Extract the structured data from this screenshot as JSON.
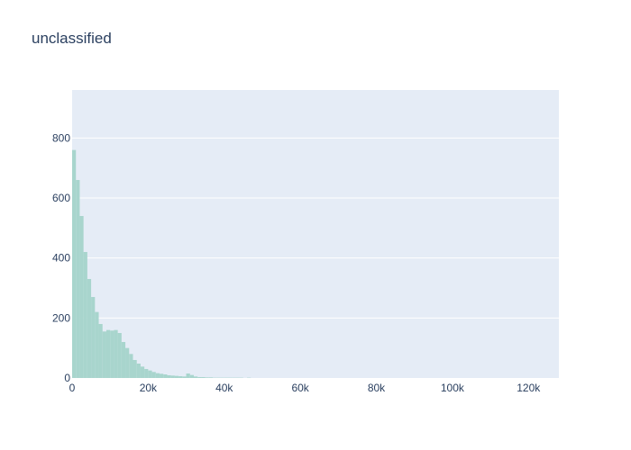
{
  "chart_data": {
    "type": "bar",
    "title": "unclassified",
    "xlabel": "",
    "ylabel": "",
    "xlim": [
      0,
      128000
    ],
    "ylim": [
      0,
      960
    ],
    "bin_width": 1000,
    "bin_start": 0,
    "grid": true,
    "bar_color": "#a8d5cd",
    "plot_bg": "#e5ecf6",
    "x_ticks": [
      {
        "value": 0,
        "label": "0"
      },
      {
        "value": 20000,
        "label": "20k"
      },
      {
        "value": 40000,
        "label": "40k"
      },
      {
        "value": 60000,
        "label": "60k"
      },
      {
        "value": 80000,
        "label": "80k"
      },
      {
        "value": 100000,
        "label": "100k"
      },
      {
        "value": 120000,
        "label": "120k"
      }
    ],
    "y_ticks": [
      {
        "value": 0,
        "label": "0"
      },
      {
        "value": 200,
        "label": "200"
      },
      {
        "value": 400,
        "label": "400"
      },
      {
        "value": 600,
        "label": "600"
      },
      {
        "value": 800,
        "label": "800"
      }
    ],
    "values": [
      760,
      660,
      540,
      420,
      330,
      270,
      220,
      180,
      155,
      160,
      158,
      160,
      150,
      120,
      100,
      80,
      60,
      48,
      38,
      30,
      25,
      20,
      16,
      14,
      12,
      9,
      8,
      7,
      6,
      5,
      15,
      10,
      5,
      3,
      3,
      2,
      2,
      1,
      1,
      1,
      1,
      1,
      1,
      1,
      1,
      0,
      1,
      0,
      0,
      0,
      0,
      0,
      0,
      0,
      0,
      0,
      0,
      0,
      0,
      0,
      0,
      0,
      0,
      0,
      0,
      0,
      0,
      0,
      0,
      0,
      0,
      0,
      0,
      0,
      0,
      0,
      0,
      0,
      0,
      0,
      0,
      0,
      0,
      0,
      0,
      0,
      0,
      0,
      0,
      0,
      0,
      0,
      0,
      0,
      0,
      0,
      0,
      0,
      0,
      0,
      0,
      0,
      0,
      0,
      0,
      0,
      0,
      0,
      0,
      0,
      0,
      0,
      0,
      0,
      0,
      0,
      0,
      0,
      0,
      0,
      0,
      0,
      0,
      0,
      0,
      0,
      0,
      0
    ]
  }
}
